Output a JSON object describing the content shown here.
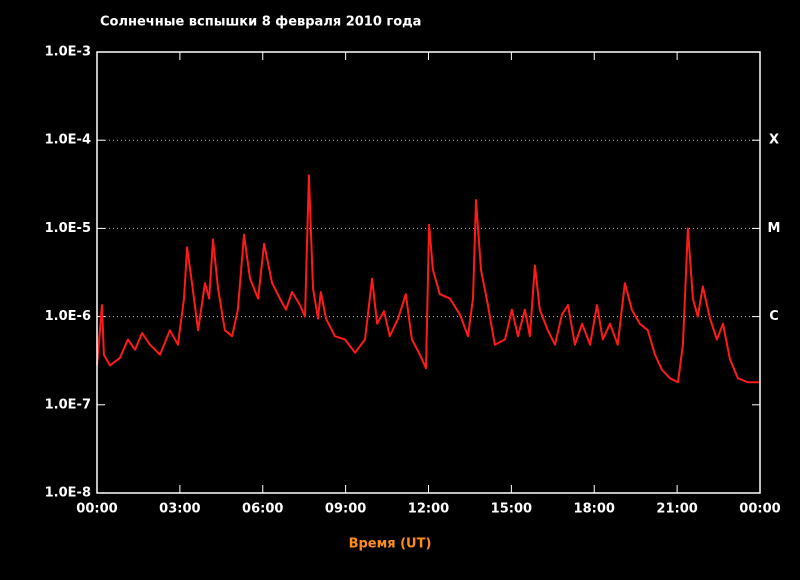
{
  "chart_data": {
    "type": "line",
    "title": "Солнечные вспышки 8 февраля 2010 года",
    "x_label": "Время (UT)",
    "log_y": true,
    "line_color": "#ff1a1a",
    "grid": true,
    "xlim": [
      0,
      24
    ],
    "xticks": [
      {
        "value": 0,
        "label": "00:00"
      },
      {
        "value": 3,
        "label": "03:00"
      },
      {
        "value": 6,
        "label": "06:00"
      },
      {
        "value": 9,
        "label": "09:00"
      },
      {
        "value": 12,
        "label": "12:00"
      },
      {
        "value": 15,
        "label": "15:00"
      },
      {
        "value": 18,
        "label": "18:00"
      },
      {
        "value": 21,
        "label": "21:00"
      },
      {
        "value": 24,
        "label": "00:00"
      }
    ],
    "ylim": [
      1e-08,
      0.001
    ],
    "yticks": [
      {
        "value": 0.001,
        "label": "1.0E-3"
      },
      {
        "value": 0.0001,
        "label": "1.0E-4"
      },
      {
        "value": 1e-05,
        "label": "1.0E-5"
      },
      {
        "value": 1e-06,
        "label": "1.0E-6"
      },
      {
        "value": 1e-07,
        "label": "1.0E-7"
      },
      {
        "value": 1e-08,
        "label": "1.0E-8"
      }
    ],
    "class_levels": [
      {
        "value": 0.0001,
        "label": "X"
      },
      {
        "value": 1e-05,
        "label": "M"
      },
      {
        "value": 1e-06,
        "label": "C"
      }
    ],
    "x": [
      0,
      0.18,
      0.25,
      0.47,
      0.83,
      1.12,
      1.38,
      1.63,
      1.92,
      2.28,
      2.64,
      2.93,
      3.15,
      3.26,
      3.44,
      3.66,
      3.91,
      4.06,
      4.2,
      4.38,
      4.63,
      4.89,
      5.1,
      5.32,
      5.54,
      5.83,
      6.05,
      6.34,
      6.62,
      6.84,
      7.06,
      7.35,
      7.53,
      7.67,
      7.82,
      8.0,
      8.1,
      8.29,
      8.61,
      8.98,
      9.34,
      9.7,
      9.96,
      10.14,
      10.39,
      10.6,
      10.9,
      11.18,
      11.4,
      11.69,
      11.91,
      12.02,
      12.16,
      12.41,
      12.78,
      13.14,
      13.43,
      13.61,
      13.72,
      13.9,
      14.15,
      14.4,
      14.77,
      15.02,
      15.24,
      15.49,
      15.67,
      15.85,
      16.03,
      16.32,
      16.58,
      16.83,
      17.05,
      17.3,
      17.56,
      17.85,
      18.1,
      18.31,
      18.57,
      18.85,
      19.11,
      19.36,
      19.65,
      19.94,
      20.2,
      20.45,
      20.74,
      21.03,
      21.21,
      21.39,
      21.57,
      21.75,
      21.93,
      22.19,
      22.44,
      22.66,
      22.91,
      23.2,
      23.56,
      24
    ],
    "values": [
      2.8e-07,
      1.35e-06,
      3.7e-07,
      2.8e-07,
      3.4e-07,
      5.5e-07,
      4.2e-07,
      6.5e-07,
      4.8e-07,
      3.7e-07,
      7e-07,
      4.8e-07,
      1.6e-06,
      6.1e-06,
      2.4e-06,
      7e-07,
      2.4e-06,
      1.6e-06,
      7.5e-06,
      2.1e-06,
      7e-07,
      6e-07,
      1.2e-06,
      8.5e-06,
      2.7e-06,
      1.6e-06,
      6.7e-06,
      2.4e-06,
      1.6e-06,
      1.2e-06,
      1.9e-06,
      1.35e-06,
      1e-06,
      4e-05,
      2.1e-06,
      9.5e-07,
      1.9e-06,
      9.5e-07,
      6e-07,
      5.5e-07,
      3.9e-07,
      5.5e-07,
      2.7e-06,
      8.3e-07,
      1.15e-06,
      6e-07,
      9.5e-07,
      1.8e-06,
      5.5e-07,
      3.7e-07,
      2.6e-07,
      1.1e-05,
      3.4e-06,
      1.8e-06,
      1.6e-06,
      1.05e-06,
      6e-07,
      1.6e-06,
      2.1e-05,
      3.4e-06,
      1.35e-06,
      4.8e-07,
      5.5e-07,
      1.2e-06,
      6e-07,
      1.2e-06,
      6e-07,
      3.8e-06,
      1.2e-06,
      7e-07,
      4.8e-07,
      1.05e-06,
      1.35e-06,
      4.8e-07,
      8.3e-07,
      4.8e-07,
      1.35e-06,
      5.5e-07,
      8.3e-07,
      4.8e-07,
      2.4e-06,
      1.2e-06,
      8.3e-07,
      7e-07,
      3.7e-07,
      2.5e-07,
      2e-07,
      1.8e-07,
      4.8e-07,
      1e-05,
      1.6e-06,
      1e-06,
      2.2e-06,
      9.5e-07,
      5.5e-07,
      8.3e-07,
      3.3e-07,
      2e-07,
      1.8e-07,
      1.8e-07
    ]
  }
}
